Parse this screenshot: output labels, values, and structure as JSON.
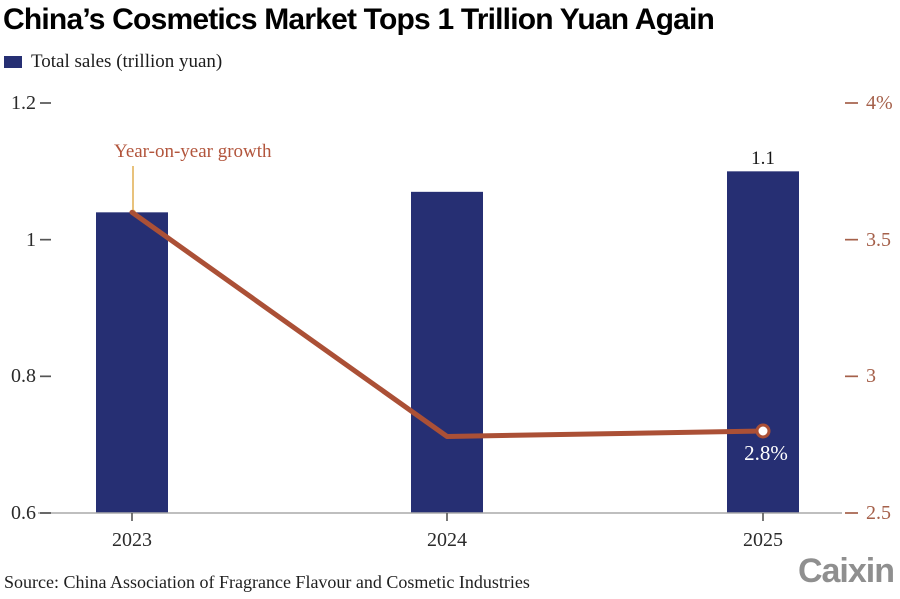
{
  "header": {
    "title": "China’s Cosmetics Market Tops 1 Trillion Yuan Again",
    "legend_label": "Total sales (trillion yuan)"
  },
  "annotation": {
    "growth_label": "Year-on-year growth"
  },
  "chart_data": {
    "type": "bar+line",
    "title": "China’s Cosmetics Market Tops 1 Trillion Yuan Again",
    "categories": [
      "2023",
      "2024",
      "2025"
    ],
    "series": [
      {
        "name": "Total sales (trillion yuan)",
        "type": "bar",
        "axis": "left",
        "values": [
          1.04,
          1.07,
          1.1
        ]
      },
      {
        "name": "Year-on-year growth",
        "type": "line",
        "axis": "right",
        "unit": "%",
        "values": [
          3.6,
          2.78,
          2.8
        ]
      }
    ],
    "bar_label_2025": "1.1",
    "point_label_2025": "2.8%",
    "y_left": {
      "range": [
        0.6,
        1.2
      ],
      "values": [
        1.2,
        1.0,
        0.8,
        0.6
      ],
      "ticks": [
        "1.2",
        "1",
        "0.8",
        "0.6"
      ]
    },
    "y_right": {
      "range": [
        2.5,
        4.0
      ],
      "values": [
        4.0,
        3.5,
        3.0,
        2.5
      ],
      "ticks": [
        "4%",
        "3.5",
        "3",
        "2.5"
      ]
    },
    "grid": false,
    "legend_position": "top-left"
  },
  "footer": {
    "source": "Source: China Association of Fragrance Flavour and Cosmetic Industries",
    "logo": "Caixin"
  },
  "colors": {
    "bar": "#262f73",
    "line": "#ab5036",
    "marker_fill": "#ffffff",
    "right_axis_text": "#a5604a",
    "annotation_text": "#b2553c",
    "callout": "#e3b25c",
    "axis_line": "#aaaaaa",
    "tick_dark": "#555555",
    "left_axis_text": "#2b2b2b",
    "logo_gray": "#8f8f8f"
  }
}
